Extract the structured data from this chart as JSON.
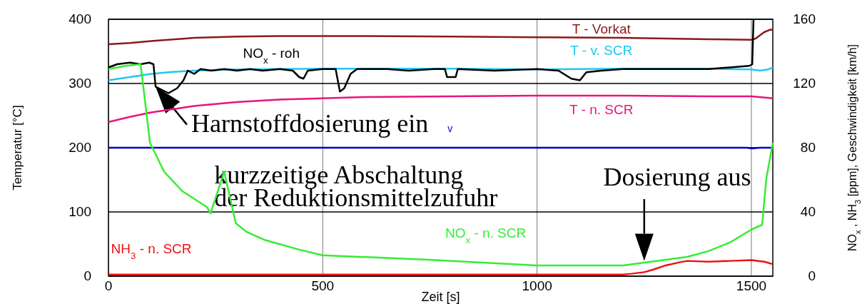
{
  "chart_data": {
    "type": "line",
    "xlabel": "Zeit [s]",
    "ylabel": "Temperatur [°C]",
    "y2label": "NO$_{x}$, NH$_{3}$ [ppm], Geschwindigkeit [km/h]",
    "xlim": [
      0,
      1550
    ],
    "xticks": [
      0,
      500,
      1000,
      1500
    ],
    "ylim": [
      0,
      400
    ],
    "yticks": [
      0,
      100,
      200,
      300,
      400
    ],
    "y2lim": [
      0,
      160
    ],
    "y2ticks": [
      0,
      40,
      80,
      120,
      160
    ],
    "grid": true,
    "marker": "none",
    "line_style": "solid",
    "series": [
      {
        "name": "T - Vorkat",
        "color": "#8b1a1a",
        "x": [
          0,
          50,
          100,
          200,
          300,
          400,
          600,
          800,
          1000,
          1200,
          1400,
          1500,
          1510,
          1530,
          1545,
          1550
        ],
        "values": [
          361,
          363,
          366,
          371,
          373,
          374,
          374,
          373,
          372,
          371,
          369,
          368,
          370,
          380,
          384,
          383
        ]
      },
      {
        "name": "T - v. SCR",
        "color": "#1ec8f0",
        "x": [
          0,
          50,
          100,
          150,
          200,
          300,
          500,
          800,
          1000,
          1200,
          1400,
          1500,
          1520,
          1540,
          1550
        ],
        "values": [
          305,
          310,
          315,
          318,
          320,
          322,
          323,
          323,
          322,
          323,
          323,
          322,
          320,
          322,
          325
        ]
      },
      {
        "name": "T - n. SCR",
        "color": "#e6157f",
        "x": [
          0,
          50,
          100,
          200,
          300,
          400,
          500,
          600,
          800,
          1000,
          1200,
          1400,
          1500,
          1550
        ],
        "values": [
          240,
          248,
          255,
          265,
          271,
          275,
          277,
          279,
          280,
          281,
          281,
          280,
          280,
          277
        ]
      },
      {
        "name": "v",
        "color": "#0000c8",
        "axis": "y2",
        "x": [
          0,
          1490,
          1500,
          1520,
          1550
        ],
        "values": [
          80,
          80,
          79.6,
          80,
          80
        ]
      },
      {
        "name": "NO$_{x}$ - roh",
        "color": "#000000",
        "axis": "y2",
        "x": [
          0,
          20,
          50,
          75,
          95,
          105,
          110,
          125,
          140,
          160,
          175,
          185,
          200,
          215,
          240,
          270,
          300,
          330,
          360,
          400,
          430,
          445,
          455,
          465,
          500,
          530,
          540,
          550,
          565,
          580,
          650,
          700,
          760,
          785,
          790,
          810,
          815,
          900,
          1000,
          1050,
          1080,
          1100,
          1115,
          1150,
          1200,
          1300,
          1400,
          1450,
          1495,
          1502,
          1505
        ],
        "values": [
          130,
          132,
          133,
          132,
          133,
          132,
          118,
          116,
          114,
          117,
          122,
          128,
          126,
          129,
          128,
          129,
          128,
          129,
          128,
          129,
          128,
          124,
          123,
          128,
          129,
          129,
          115,
          117,
          126,
          129,
          129,
          128,
          129,
          129,
          124,
          124,
          129,
          128,
          129,
          128,
          123,
          122,
          127,
          128,
          129,
          129,
          129,
          130,
          131,
          132,
          160
        ]
      },
      {
        "name": "NO$_{x}$ - n. SCR",
        "color": "#33ee33",
        "axis": "y2",
        "x": [
          0,
          40,
          75,
          97,
          130,
          172,
          230,
          238,
          270,
          297,
          322,
          363,
          447,
          500,
          747,
          1000,
          1200,
          1250,
          1350,
          1400,
          1450,
          1500,
          1525,
          1535,
          1550
        ],
        "values": [
          129,
          131,
          132,
          83,
          65,
          53,
          43,
          39,
          65,
          33,
          27.6,
          22.7,
          16.4,
          13,
          10.2,
          6.7,
          6.7,
          8.4,
          12,
          15.6,
          21,
          29,
          32,
          61,
          83
        ]
      },
      {
        "name": "NH$_{3}$ - n. SCR",
        "color": "#ee1111",
        "axis": "y2",
        "x": [
          0,
          300,
          600,
          900,
          1200,
          1220,
          1250,
          1270,
          1300,
          1330,
          1350,
          1400,
          1450,
          1500,
          1530,
          1550
        ],
        "values": [
          1,
          1,
          1,
          1,
          1,
          1.5,
          2.5,
          4,
          6.7,
          8.5,
          9.5,
          9,
          9.5,
          10,
          9,
          7.5
        ]
      }
    ],
    "annotations": [
      {
        "text": "Harnstoffdosierung ein",
        "x": 110,
        "y": 295
      },
      "kurzzeitige Abschaltung\nder Reduktionsmittelzufuhr",
      {
        "text": "Dosierung aus",
        "x": 1250,
        "y": 24
      }
    ]
  }
}
